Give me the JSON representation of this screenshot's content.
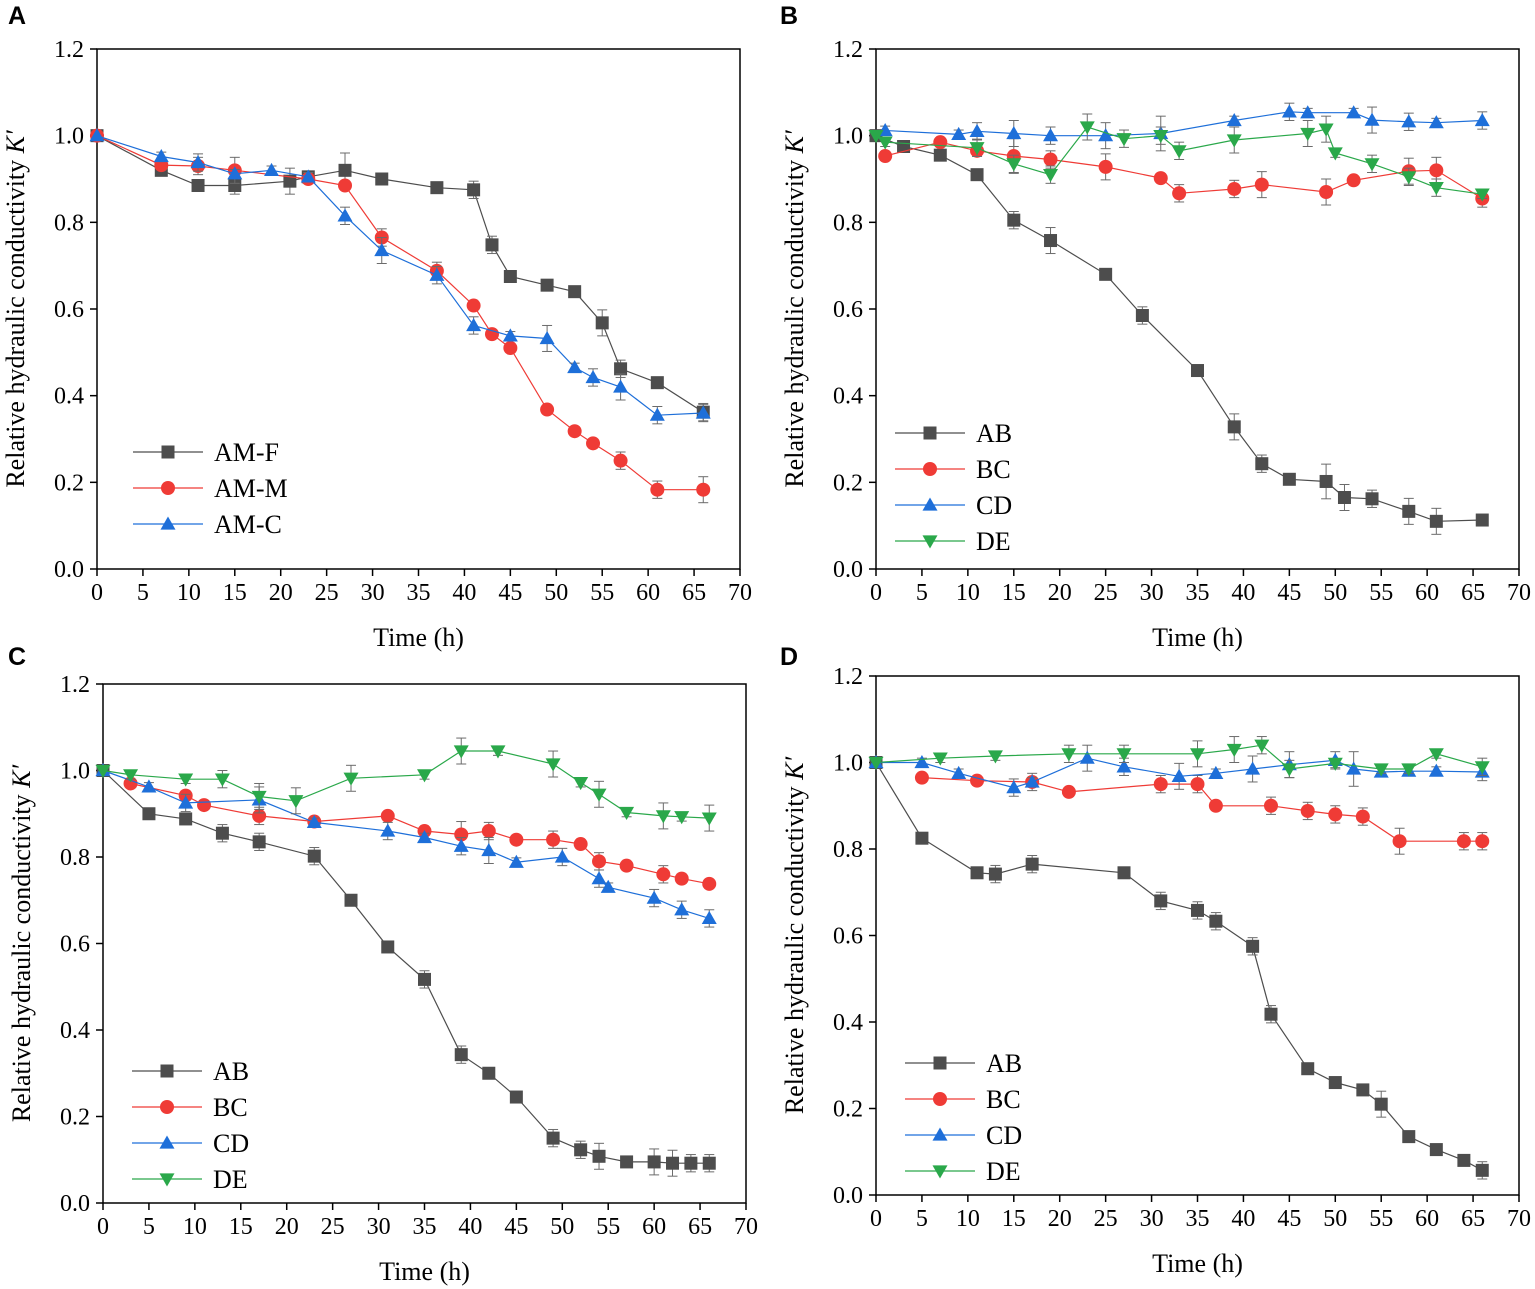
{
  "figure": {
    "colors": {
      "gray": "#4d4d4d",
      "red": "#ef3b36",
      "blue": "#1e6fd9",
      "green": "#2aa84a",
      "axis": "#000000",
      "errorbar": "#6b6b6b"
    }
  },
  "chart_data": [
    {
      "panel": "A",
      "type": "line",
      "xlabel": "Time (h)",
      "ylabel": "Relative hydraulic conductivity ",
      "ylabel_italic": "K′",
      "xlim": [
        0,
        70
      ],
      "ylim": [
        0,
        1.2
      ],
      "xticks": [
        0,
        5,
        10,
        15,
        20,
        25,
        30,
        35,
        40,
        45,
        50,
        55,
        60,
        65,
        70
      ],
      "yticks": [
        0.0,
        0.2,
        0.4,
        0.6,
        0.8,
        1.0,
        1.2
      ],
      "ytick_labels": [
        "0.0",
        "0.2",
        "0.4",
        "0.6",
        "0.8",
        "1.0",
        "1.2"
      ],
      "legend_position": "bottom-left",
      "series": [
        {
          "name": "AM-F",
          "color": "#4d4d4d",
          "marker": "square",
          "x": [
            0,
            7,
            11,
            15,
            21,
            23,
            27,
            31,
            37,
            41,
            43,
            45,
            49,
            52,
            55,
            57,
            61,
            66
          ],
          "y": [
            1.0,
            0.92,
            0.885,
            0.885,
            0.895,
            0.905,
            0.92,
            0.9,
            0.88,
            0.875,
            0.748,
            0.675,
            0.655,
            0.64,
            0.568,
            0.462,
            0.43,
            0.362
          ],
          "err": [
            0,
            0.01,
            0.01,
            0.02,
            0.03,
            0.01,
            0.04,
            0.01,
            0.01,
            0.02,
            0.02,
            0.01,
            0.01,
            0.01,
            0.03,
            0.02,
            0.01,
            0.02
          ]
        },
        {
          "name": "AM-M",
          "color": "#ef3b36",
          "marker": "circle",
          "x": [
            0,
            7,
            11,
            15,
            23,
            27,
            31,
            37,
            41,
            43,
            45,
            49,
            52,
            54,
            57,
            61,
            66
          ],
          "y": [
            1.0,
            0.932,
            0.93,
            0.92,
            0.9,
            0.885,
            0.765,
            0.688,
            0.608,
            0.542,
            0.51,
            0.368,
            0.318,
            0.29,
            0.25,
            0.183,
            0.183
          ],
          "err": [
            0,
            0.01,
            0.02,
            0.03,
            0.01,
            0.01,
            0.02,
            0.02,
            0.01,
            0.01,
            0.01,
            0.01,
            0.01,
            0.01,
            0.02,
            0.02,
            0.03
          ]
        },
        {
          "name": "AM-C",
          "color": "#1e6fd9",
          "marker": "triangle-up",
          "x": [
            0,
            7,
            11,
            15,
            19,
            23,
            27,
            31,
            37,
            41,
            45,
            49,
            52,
            54,
            57,
            61,
            66
          ],
          "y": [
            1.0,
            0.952,
            0.938,
            0.912,
            0.92,
            0.905,
            0.815,
            0.735,
            0.678,
            0.562,
            0.538,
            0.532,
            0.465,
            0.442,
            0.42,
            0.355,
            0.36
          ],
          "err": [
            0,
            0.01,
            0.02,
            0.01,
            0.01,
            0.01,
            0.02,
            0.03,
            0.02,
            0.02,
            0.01,
            0.03,
            0.01,
            0.02,
            0.03,
            0.02,
            0.02
          ]
        }
      ]
    },
    {
      "panel": "B",
      "type": "line",
      "xlabel": "Time (h)",
      "ylabel": "Relative hydraulic conductivity ",
      "ylabel_italic": "K′",
      "xlim": [
        0,
        70
      ],
      "ylim": [
        0,
        1.2
      ],
      "xticks": [
        0,
        5,
        10,
        15,
        20,
        25,
        30,
        35,
        40,
        45,
        50,
        55,
        60,
        65,
        70
      ],
      "yticks": [
        0.0,
        0.2,
        0.4,
        0.6,
        0.8,
        1.0,
        1.2
      ],
      "ytick_labels": [
        "0.0",
        "0.2",
        "0.4",
        "0.6",
        "0.8",
        "1.0",
        "1.2"
      ],
      "legend_position": "bottom-left",
      "series": [
        {
          "name": "AB",
          "color": "#4d4d4d",
          "marker": "square",
          "x": [
            0,
            3,
            7,
            11,
            15,
            19,
            25,
            29,
            35,
            39,
            42,
            45,
            49,
            51,
            54,
            58,
            61,
            66
          ],
          "y": [
            1.0,
            0.975,
            0.955,
            0.91,
            0.805,
            0.758,
            0.68,
            0.585,
            0.458,
            0.328,
            0.243,
            0.207,
            0.202,
            0.165,
            0.162,
            0.133,
            0.11,
            0.113
          ],
          "err": [
            0,
            0.01,
            0.01,
            0.01,
            0.02,
            0.03,
            0.01,
            0.02,
            0.01,
            0.03,
            0.02,
            0.01,
            0.04,
            0.03,
            0.02,
            0.03,
            0.03,
            0.01
          ]
        },
        {
          "name": "BC",
          "color": "#ef3b36",
          "marker": "circle",
          "x": [
            1,
            7,
            11,
            15,
            19,
            25,
            31,
            33,
            39,
            42,
            49,
            52,
            58,
            61,
            66
          ],
          "y": [
            0.953,
            0.985,
            0.965,
            0.953,
            0.945,
            0.928,
            0.902,
            0.867,
            0.877,
            0.887,
            0.87,
            0.897,
            0.918,
            0.92,
            0.855
          ],
          "err": [
            0.01,
            0.01,
            0.01,
            0.04,
            0.02,
            0.03,
            0.01,
            0.02,
            0.02,
            0.03,
            0.03,
            0.01,
            0.03,
            0.03,
            0.02
          ]
        },
        {
          "name": "CD",
          "color": "#1e6fd9",
          "marker": "triangle-up",
          "x": [
            1,
            9,
            11,
            15,
            19,
            25,
            31,
            39,
            45,
            47,
            52,
            54,
            58,
            61,
            66
          ],
          "y": [
            1.012,
            1.003,
            1.01,
            1.005,
            1.0,
            1.0,
            1.005,
            1.035,
            1.055,
            1.053,
            1.053,
            1.036,
            1.032,
            1.03,
            1.035
          ],
          "err": [
            0.01,
            0.01,
            0.02,
            0.03,
            0.02,
            0.03,
            0.04,
            0.01,
            0.02,
            0.01,
            0.01,
            0.03,
            0.02,
            0.01,
            0.02
          ]
        },
        {
          "name": "DE",
          "color": "#2aa84a",
          "marker": "triangle-down",
          "x": [
            0,
            1,
            11,
            15,
            19,
            23,
            27,
            31,
            33,
            39,
            47,
            49,
            50,
            54,
            58,
            61,
            66
          ],
          "y": [
            1.0,
            0.985,
            0.972,
            0.935,
            0.91,
            1.02,
            0.993,
            1.0,
            0.965,
            0.99,
            1.005,
            1.015,
            0.96,
            0.935,
            0.905,
            0.88,
            0.865
          ],
          "err": [
            0,
            0.01,
            0.02,
            0.02,
            0.02,
            0.03,
            0.02,
            0.02,
            0.02,
            0.03,
            0.03,
            0.03,
            0.01,
            0.02,
            0.02,
            0.02,
            0.01
          ]
        }
      ]
    },
    {
      "panel": "C",
      "type": "line",
      "xlabel": "Time (h)",
      "ylabel": "Relative hydraulic conductivity ",
      "ylabel_italic": "K′",
      "xlim": [
        0,
        70
      ],
      "ylim": [
        0,
        1.2
      ],
      "xticks": [
        0,
        5,
        10,
        15,
        20,
        25,
        30,
        35,
        40,
        45,
        50,
        55,
        60,
        65,
        70
      ],
      "yticks": [
        0.0,
        0.2,
        0.4,
        0.6,
        0.8,
        1.0,
        1.2
      ],
      "ytick_labels": [
        "0.0",
        "0.2",
        "0.4",
        "0.6",
        "0.8",
        "1.0",
        "1.2"
      ],
      "legend_position": "bottom-left",
      "series": [
        {
          "name": "AB",
          "color": "#4d4d4d",
          "marker": "square",
          "x": [
            0,
            5,
            9,
            13,
            17,
            23,
            27,
            31,
            35,
            39,
            42,
            45,
            49,
            52,
            54,
            57,
            60,
            62,
            64,
            66
          ],
          "y": [
            1.0,
            0.9,
            0.888,
            0.855,
            0.835,
            0.802,
            0.7,
            0.592,
            0.517,
            0.343,
            0.3,
            0.245,
            0.15,
            0.123,
            0.108,
            0.095,
            0.095,
            0.092,
            0.092,
            0.092
          ],
          "err": [
            0,
            0.01,
            0.01,
            0.02,
            0.02,
            0.02,
            0.01,
            0.01,
            0.02,
            0.02,
            0.01,
            0.01,
            0.02,
            0.02,
            0.03,
            0.01,
            0.03,
            0.03,
            0.02,
            0.02
          ]
        },
        {
          "name": "BC",
          "color": "#ef3b36",
          "marker": "circle",
          "x": [
            3,
            9,
            11,
            17,
            23,
            31,
            35,
            39,
            42,
            45,
            49,
            52,
            54,
            57,
            61,
            63,
            66
          ],
          "y": [
            0.97,
            0.942,
            0.92,
            0.895,
            0.882,
            0.895,
            0.86,
            0.852,
            0.86,
            0.84,
            0.84,
            0.83,
            0.79,
            0.78,
            0.76,
            0.75,
            0.738
          ],
          "err": [
            0.01,
            0.01,
            0.01,
            0.02,
            0.01,
            0.01,
            0.01,
            0.03,
            0.02,
            0.01,
            0.02,
            0.01,
            0.02,
            0.01,
            0.02,
            0.01,
            0.01
          ]
        },
        {
          "name": "CD",
          "color": "#1e6fd9",
          "marker": "triangle-up",
          "x": [
            0,
            5,
            9,
            17,
            23,
            31,
            35,
            39,
            42,
            45,
            50,
            54,
            55,
            60,
            63,
            66
          ],
          "y": [
            1.0,
            0.962,
            0.925,
            0.932,
            0.88,
            0.86,
            0.845,
            0.825,
            0.815,
            0.788,
            0.8,
            0.75,
            0.73,
            0.705,
            0.678,
            0.658
          ],
          "err": [
            0,
            0.01,
            0.02,
            0.03,
            0.01,
            0.02,
            0.01,
            0.02,
            0.03,
            0.01,
            0.02,
            0.02,
            0.01,
            0.02,
            0.02,
            0.02
          ]
        },
        {
          "name": "DE",
          "color": "#2aa84a",
          "marker": "triangle-down",
          "x": [
            0,
            3,
            9,
            13,
            17,
            21,
            27,
            35,
            39,
            43,
            49,
            52,
            54,
            57,
            61,
            63,
            66
          ],
          "y": [
            1.0,
            0.99,
            0.98,
            0.98,
            0.94,
            0.93,
            0.982,
            0.99,
            1.045,
            1.045,
            1.015,
            0.972,
            0.945,
            0.903,
            0.895,
            0.893,
            0.89
          ],
          "err": [
            0,
            0.01,
            0.01,
            0.02,
            0.03,
            0.03,
            0.03,
            0.01,
            0.03,
            0.01,
            0.03,
            0.01,
            0.03,
            0.01,
            0.03,
            0.01,
            0.03
          ]
        }
      ]
    },
    {
      "panel": "D",
      "type": "line",
      "xlabel": "Time (h)",
      "ylabel": "Relative hydraulic conductivity ",
      "ylabel_italic": "K′",
      "xlim": [
        0,
        70
      ],
      "ylim": [
        0,
        1.2
      ],
      "xticks": [
        0,
        5,
        10,
        15,
        20,
        25,
        30,
        35,
        40,
        45,
        50,
        55,
        60,
        65,
        70
      ],
      "yticks": [
        0.0,
        0.2,
        0.4,
        0.6,
        0.8,
        1.0,
        1.2
      ],
      "ytick_labels": [
        "0.0",
        "0.2",
        "0.4",
        "0.6",
        "0.8",
        "1.0",
        "1.2"
      ],
      "legend_position": "bottom-left",
      "series": [
        {
          "name": "AB",
          "color": "#4d4d4d",
          "marker": "square",
          "x": [
            0,
            5,
            11,
            13,
            17,
            27,
            31,
            35,
            37,
            41,
            43,
            47,
            50,
            53,
            55,
            58,
            61,
            64,
            66
          ],
          "y": [
            1.0,
            0.825,
            0.745,
            0.742,
            0.765,
            0.745,
            0.68,
            0.658,
            0.633,
            0.575,
            0.418,
            0.292,
            0.26,
            0.243,
            0.21,
            0.135,
            0.105,
            0.08,
            0.057
          ],
          "err": [
            0,
            0.01,
            0.01,
            0.02,
            0.02,
            0.01,
            0.02,
            0.02,
            0.02,
            0.02,
            0.02,
            0.01,
            0.01,
            0.01,
            0.03,
            0.01,
            0.01,
            0.01,
            0.02
          ]
        },
        {
          "name": "BC",
          "color": "#ef3b36",
          "marker": "circle",
          "x": [
            5,
            11,
            17,
            21,
            31,
            35,
            37,
            43,
            47,
            50,
            53,
            57,
            64,
            66
          ],
          "y": [
            0.965,
            0.958,
            0.955,
            0.932,
            0.95,
            0.95,
            0.9,
            0.9,
            0.888,
            0.88,
            0.875,
            0.818,
            0.818,
            0.818
          ],
          "err": [
            0.01,
            0.01,
            0.02,
            0.01,
            0.02,
            0.02,
            0.01,
            0.02,
            0.02,
            0.02,
            0.02,
            0.03,
            0.02,
            0.02
          ]
        },
        {
          "name": "CD",
          "color": "#1e6fd9",
          "marker": "triangle-up",
          "x": [
            0,
            5,
            9,
            15,
            17,
            23,
            27,
            33,
            37,
            41,
            45,
            50,
            52,
            55,
            58,
            61,
            66
          ],
          "y": [
            1.0,
            1.0,
            0.975,
            0.942,
            0.955,
            1.01,
            0.99,
            0.968,
            0.975,
            0.985,
            0.995,
            1.005,
            0.985,
            0.978,
            0.98,
            0.98,
            0.978
          ],
          "err": [
            0,
            0.01,
            0.01,
            0.02,
            0.01,
            0.03,
            0.02,
            0.03,
            0.01,
            0.03,
            0.03,
            0.02,
            0.04,
            0.01,
            0.01,
            0.01,
            0.02
          ]
        },
        {
          "name": "DE",
          "color": "#2aa84a",
          "marker": "triangle-down",
          "x": [
            0,
            7,
            13,
            21,
            27,
            35,
            39,
            42,
            45,
            50,
            55,
            58,
            61,
            66
          ],
          "y": [
            1.0,
            1.01,
            1.015,
            1.02,
            1.02,
            1.02,
            1.03,
            1.04,
            0.985,
            0.998,
            0.985,
            0.985,
            1.02,
            0.99
          ],
          "err": [
            0,
            0.01,
            0.01,
            0.02,
            0.02,
            0.03,
            0.03,
            0.02,
            0.02,
            0.01,
            0.01,
            0.01,
            0.01,
            0.02
          ]
        }
      ]
    }
  ]
}
